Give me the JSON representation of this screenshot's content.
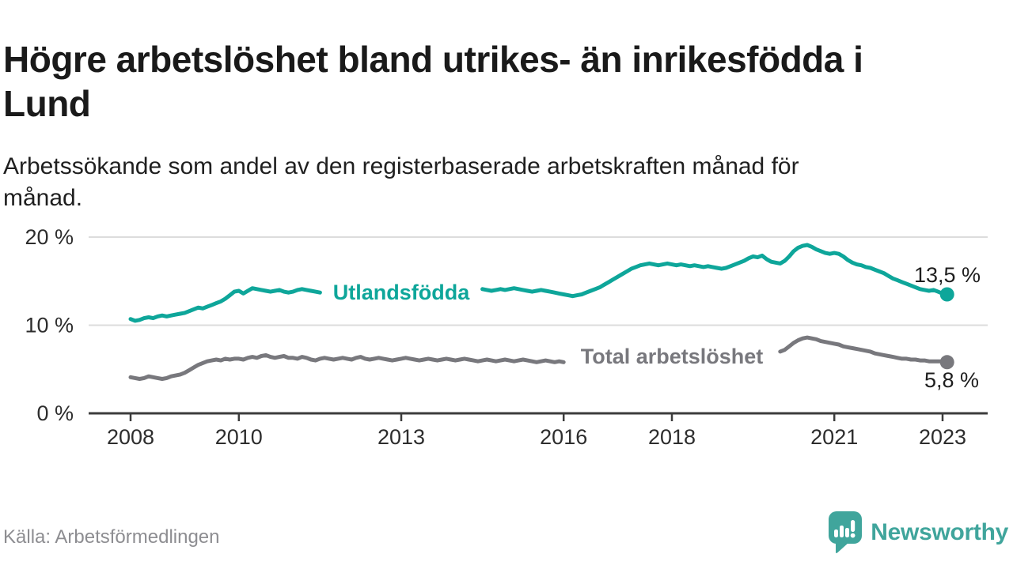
{
  "header": {
    "title": "Högre arbetslöshet bland utrikes- än inrikesfödda i\nLund",
    "subtitle": "Arbetssökande som andel av den registerbaserade arbetskraften månad för\nmånad."
  },
  "footer": {
    "source": "Källa: Arbetsförmedlingen",
    "brand": "Newsworthy"
  },
  "colors": {
    "series_foreign_born": "#0ea69a",
    "series_total": "#78787d",
    "brand_teal": "#40a59c",
    "gridline": "#dcdcdc",
    "axis": "#3c3c3c",
    "text_dark": "#1a1a1a",
    "text_muted": "#8d8d91"
  },
  "chart_data": {
    "type": "line",
    "title": "Högre arbetslöshet bland utrikes- än inrikesfödda i Lund",
    "subtitle": "Arbetssökande som andel av den registerbaserade arbetskraften månad för månad.",
    "x_unit": "month",
    "x_start": "2008-01",
    "x_end": "2023-02",
    "grid": "horizontal",
    "legend_position": "inline",
    "ylim": [
      0,
      21.5
    ],
    "x_ticks": [
      {
        "year": 2008,
        "label": "2008"
      },
      {
        "year": 2010,
        "label": "2010"
      },
      {
        "year": 2013,
        "label": "2013"
      },
      {
        "year": 2016,
        "label": "2016"
      },
      {
        "year": 2018,
        "label": "2018"
      },
      {
        "year": 2021,
        "label": "2021"
      },
      {
        "year": 2023,
        "label": "2023"
      }
    ],
    "y_ticks": [
      {
        "value": 0,
        "label": "0 %"
      },
      {
        "value": 10,
        "label": "10 %"
      },
      {
        "value": 20,
        "label": "20 %"
      }
    ],
    "series": [
      {
        "name": "Utlandsfödda",
        "inline_label": "Utlandsfödda",
        "end_label": "13,5 %",
        "end_value": 13.5,
        "color": "#0ea69a",
        "label_gap_month_indices": [
          43,
          77
        ],
        "values": [
          10.7,
          10.5,
          10.6,
          10.8,
          10.9,
          10.8,
          11.0,
          11.1,
          11.0,
          11.1,
          11.2,
          11.3,
          11.4,
          11.6,
          11.8,
          12.0,
          11.9,
          12.1,
          12.3,
          12.5,
          12.7,
          13.0,
          13.4,
          13.8,
          13.9,
          13.6,
          13.9,
          14.2,
          14.1,
          14.0,
          13.9,
          13.8,
          13.9,
          14.0,
          13.8,
          13.7,
          13.8,
          14.0,
          14.1,
          14.0,
          13.9,
          13.8,
          13.7,
          13.6,
          13.5,
          13.6,
          13.5,
          13.4,
          13.4,
          13.5,
          13.6,
          13.5,
          13.4,
          13.5,
          13.6,
          13.5,
          13.6,
          13.7,
          13.6,
          13.5,
          13.5,
          13.6,
          13.7,
          13.6,
          13.5,
          13.6,
          13.7,
          13.8,
          13.7,
          13.8,
          13.9,
          13.8,
          13.9,
          14.0,
          13.9,
          14.0,
          14.1,
          14.0,
          14.1,
          14.0,
          13.9,
          14.0,
          14.1,
          14.0,
          14.1,
          14.2,
          14.1,
          14.0,
          13.9,
          13.8,
          13.9,
          14.0,
          13.9,
          13.8,
          13.7,
          13.6,
          13.5,
          13.4,
          13.3,
          13.4,
          13.5,
          13.7,
          13.9,
          14.1,
          14.3,
          14.6,
          14.9,
          15.2,
          15.5,
          15.8,
          16.1,
          16.4,
          16.6,
          16.8,
          16.9,
          17.0,
          16.9,
          16.8,
          16.9,
          17.0,
          16.9,
          16.8,
          16.9,
          16.8,
          16.7,
          16.8,
          16.7,
          16.6,
          16.7,
          16.6,
          16.5,
          16.4,
          16.5,
          16.7,
          16.9,
          17.1,
          17.3,
          17.6,
          17.8,
          17.7,
          17.9,
          17.5,
          17.2,
          17.1,
          17.0,
          17.3,
          17.8,
          18.4,
          18.8,
          19.0,
          19.1,
          18.9,
          18.6,
          18.4,
          18.2,
          18.1,
          18.2,
          18.1,
          17.8,
          17.4,
          17.1,
          16.9,
          16.8,
          16.6,
          16.5,
          16.3,
          16.1,
          15.9,
          15.6,
          15.3,
          15.1,
          14.9,
          14.7,
          14.5,
          14.3,
          14.1,
          14.0,
          13.9,
          14.0,
          13.8,
          13.6,
          13.5
        ]
      },
      {
        "name": "Total arbetslöshet",
        "inline_label": "Total arbetslöshet",
        "end_label": "5,8 %",
        "end_value": 5.8,
        "color": "#78787d",
        "label_gap_month_indices": [
          97,
          143
        ],
        "values": [
          4.1,
          4.0,
          3.9,
          4.0,
          4.2,
          4.1,
          4.0,
          3.9,
          4.0,
          4.2,
          4.3,
          4.4,
          4.6,
          4.9,
          5.2,
          5.5,
          5.7,
          5.9,
          6.0,
          6.1,
          6.0,
          6.2,
          6.1,
          6.2,
          6.2,
          6.1,
          6.3,
          6.4,
          6.3,
          6.5,
          6.6,
          6.4,
          6.3,
          6.4,
          6.5,
          6.3,
          6.3,
          6.2,
          6.4,
          6.3,
          6.1,
          6.0,
          6.2,
          6.3,
          6.2,
          6.1,
          6.2,
          6.3,
          6.2,
          6.1,
          6.3,
          6.4,
          6.2,
          6.1,
          6.2,
          6.3,
          6.2,
          6.1,
          6.0,
          6.1,
          6.2,
          6.3,
          6.2,
          6.1,
          6.0,
          6.1,
          6.2,
          6.1,
          6.0,
          6.1,
          6.2,
          6.1,
          6.0,
          6.1,
          6.2,
          6.1,
          6.0,
          5.9,
          6.0,
          6.1,
          6.0,
          5.9,
          6.0,
          6.1,
          6.0,
          5.9,
          6.0,
          6.1,
          6.0,
          5.9,
          5.8,
          5.9,
          6.0,
          5.9,
          5.8,
          5.9,
          5.8,
          5.7,
          5.8,
          5.9,
          5.8,
          5.7,
          5.8,
          5.9,
          5.8,
          5.7,
          5.8,
          5.7,
          5.6,
          5.7,
          5.8,
          5.7,
          5.6,
          5.7,
          5.8,
          5.7,
          5.6,
          5.7,
          5.8,
          5.7,
          5.6,
          5.5,
          5.6,
          5.7,
          5.6,
          5.5,
          5.6,
          5.7,
          5.6,
          5.5,
          5.6,
          5.7,
          5.8,
          5.9,
          6.0,
          6.1,
          6.2,
          6.3,
          6.4,
          6.5,
          6.5,
          6.6,
          6.7,
          6.8,
          7.0,
          7.2,
          7.6,
          8.0,
          8.3,
          8.5,
          8.6,
          8.5,
          8.4,
          8.2,
          8.1,
          8.0,
          7.9,
          7.8,
          7.6,
          7.5,
          7.4,
          7.3,
          7.2,
          7.1,
          7.0,
          6.8,
          6.7,
          6.6,
          6.5,
          6.4,
          6.3,
          6.2,
          6.2,
          6.1,
          6.1,
          6.0,
          6.0,
          5.9,
          5.9,
          5.9,
          5.9,
          5.8
        ]
      }
    ]
  }
}
